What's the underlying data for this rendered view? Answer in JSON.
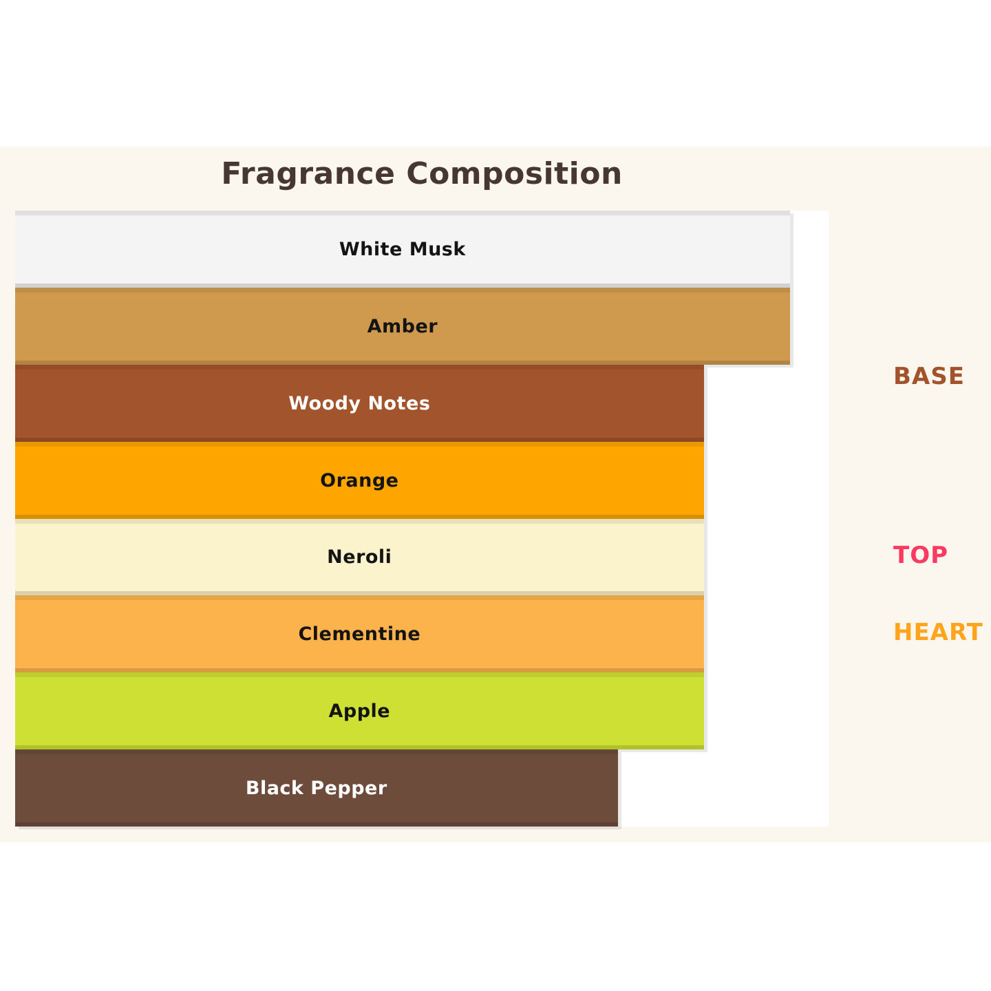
{
  "title": "Fragrance Composition",
  "chart_data": {
    "type": "bar",
    "orientation": "horizontal",
    "title": "Fragrance Composition",
    "categories": [
      "White Musk",
      "Amber",
      "Woody Notes",
      "Orange",
      "Neroli",
      "Clementine",
      "Apple",
      "Black Pepper"
    ],
    "values": [
      9,
      9,
      8,
      8,
      8,
      8,
      8,
      7
    ],
    "xlim": [
      0,
      9.45
    ],
    "grid": false,
    "axis_ticks": "none",
    "bar_colors": [
      "#F4F4F4",
      "#CF9A4E",
      "#A2542C",
      "#FFA500",
      "#FAF3CC",
      "#FCB34B",
      "#CDE033",
      "#6D4C3C"
    ],
    "bar_label_colors": [
      "#141414",
      "#141414",
      "#FFFFFF",
      "#141414",
      "#141414",
      "#141414",
      "#141414",
      "#FFFFFF"
    ],
    "legend_position": "right-outside"
  },
  "group_labels": [
    {
      "label": "BASE",
      "color": "#A3532B",
      "aligned_category": "Woody Notes"
    },
    {
      "label": "TOP",
      "color": "#FB3A60",
      "aligned_category": "Neroli"
    },
    {
      "label": "HEART",
      "color": "#FFA41B",
      "aligned_category": "Clementine"
    }
  ],
  "colors": {
    "page_bg": "#FFFFFF",
    "figure_bg": "#FBF6EE",
    "plot_bg": "#FFFFFF",
    "title_color": "#463831"
  }
}
